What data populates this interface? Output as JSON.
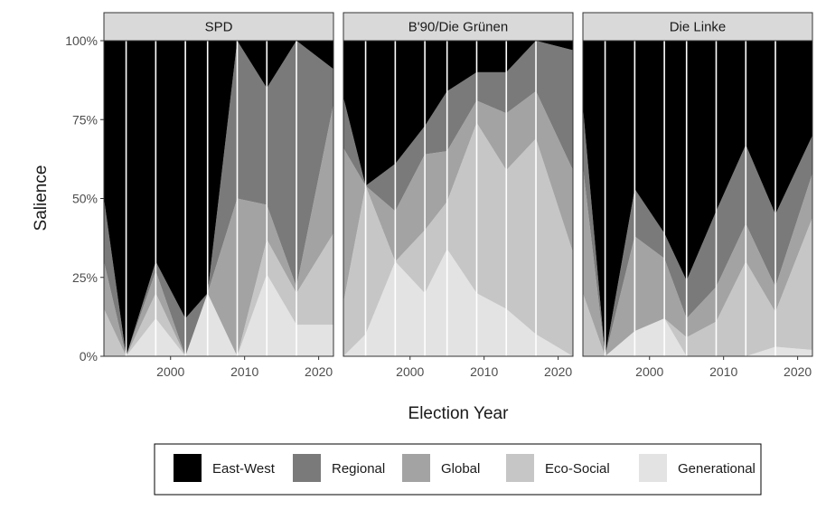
{
  "chart_data": {
    "type": "area",
    "stacked": true,
    "normalized": true,
    "ylabel": "Salience",
    "xlabel": "Election Year",
    "xlim": [
      1991,
      2022
    ],
    "ylim": [
      0,
      1
    ],
    "x_ticks": [
      2000,
      2010,
      2020
    ],
    "x_tick_labels": [
      "2000",
      "2010",
      "2020"
    ],
    "y_ticks": [
      0,
      0.25,
      0.5,
      0.75,
      1
    ],
    "y_tick_labels": [
      "0%",
      "25%",
      "50%",
      "75%",
      "100%"
    ],
    "election_years": [
      1994,
      1998,
      2002,
      2005,
      2009,
      2013,
      2017
    ],
    "legend_position": "bottom",
    "stack_order_bottom_to_top": [
      "Generational",
      "Eco-Social",
      "Global",
      "Regional",
      "East-West"
    ],
    "legend": [
      {
        "label": "East-West",
        "color": "#000000"
      },
      {
        "label": "Regional",
        "color": "#7a7a7a"
      },
      {
        "label": "Global",
        "color": "#a3a3a3"
      },
      {
        "label": "Eco-Social",
        "color": "#c6c6c6"
      },
      {
        "label": "Generational",
        "color": "#e3e3e3"
      }
    ],
    "panels": [
      {
        "title": "SPD",
        "x": [
          1991,
          1994,
          1998,
          2002,
          2005,
          2009,
          2013,
          2017,
          2022
        ],
        "series": [
          {
            "name": "Generational",
            "values": [
              0.0,
              0.0,
              0.12,
              0.0,
              0.2,
              0.0,
              0.26,
              0.1,
              0.1
            ]
          },
          {
            "name": "Eco-Social",
            "values": [
              0.15,
              0.0,
              0.08,
              0.0,
              0.0,
              0.0,
              0.11,
              0.1,
              0.29
            ]
          },
          {
            "name": "Global",
            "values": [
              0.15,
              0.0,
              0.07,
              0.0,
              0.0,
              0.5,
              0.11,
              0.02,
              0.41
            ]
          },
          {
            "name": "Regional",
            "values": [
              0.2,
              0.0,
              0.03,
              0.12,
              0.0,
              0.5,
              0.37,
              0.78,
              0.11
            ]
          },
          {
            "name": "East-West",
            "values": [
              0.5,
              1.0,
              0.7,
              0.88,
              0.8,
              0.0,
              0.15,
              0.0,
              0.09
            ]
          }
        ]
      },
      {
        "title": "B'90/Die Grünen",
        "x": [
          1991,
          1994,
          1998,
          2002,
          2005,
          2009,
          2013,
          2017,
          2022
        ],
        "series": [
          {
            "name": "Generational",
            "values": [
              0.0,
              0.07,
              0.3,
              0.2,
              0.34,
              0.2,
              0.15,
              0.07,
              0.0
            ]
          },
          {
            "name": "Eco-Social",
            "values": [
              0.17,
              0.47,
              0.0,
              0.2,
              0.15,
              0.54,
              0.44,
              0.62,
              0.33
            ]
          },
          {
            "name": "Global",
            "values": [
              0.49,
              0.0,
              0.16,
              0.24,
              0.16,
              0.07,
              0.18,
              0.15,
              0.26
            ]
          },
          {
            "name": "Regional",
            "values": [
              0.16,
              0.0,
              0.15,
              0.09,
              0.19,
              0.09,
              0.13,
              0.16,
              0.38
            ]
          },
          {
            "name": "East-West",
            "values": [
              0.18,
              0.46,
              0.39,
              0.27,
              0.16,
              0.1,
              0.1,
              0.0,
              0.03
            ]
          }
        ]
      },
      {
        "title": "Die Linke",
        "x": [
          1991,
          1994,
          1998,
          2002,
          2005,
          2009,
          2013,
          2017,
          2022
        ],
        "series": [
          {
            "name": "Generational",
            "values": [
              0.0,
              0.0,
              0.08,
              0.12,
              0.0,
              0.0,
              0.0,
              0.03,
              0.02
            ]
          },
          {
            "name": "Eco-Social",
            "values": [
              0.2,
              0.0,
              0.0,
              0.0,
              0.06,
              0.11,
              0.3,
              0.11,
              0.42
            ]
          },
          {
            "name": "Global",
            "values": [
              0.4,
              0.0,
              0.3,
              0.19,
              0.06,
              0.11,
              0.12,
              0.08,
              0.14
            ]
          },
          {
            "name": "Regional",
            "values": [
              0.19,
              0.0,
              0.15,
              0.08,
              0.12,
              0.24,
              0.25,
              0.23,
              0.12
            ]
          },
          {
            "name": "East-West",
            "values": [
              0.21,
              1.0,
              0.47,
              0.61,
              0.76,
              0.54,
              0.33,
              0.55,
              0.3
            ]
          }
        ]
      }
    ]
  }
}
